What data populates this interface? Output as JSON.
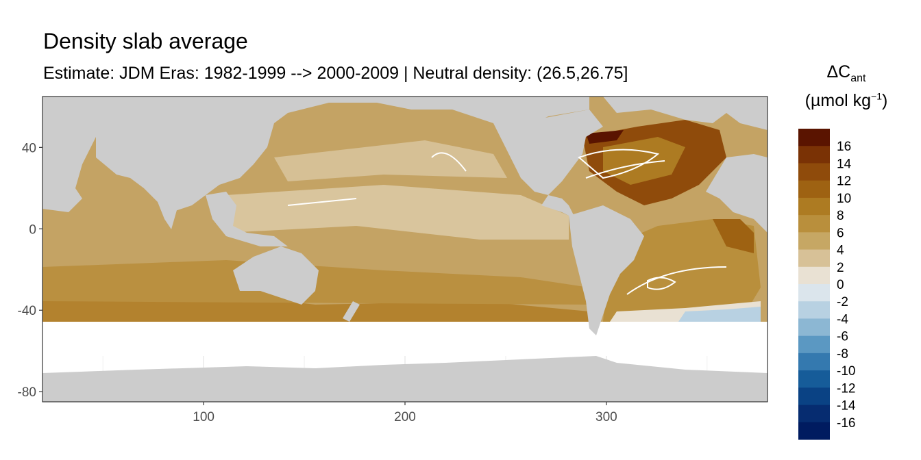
{
  "chart_data": {
    "type": "heatmap",
    "title": "Density slab average",
    "subtitle": "Estimate: JDM Eras: 1982-1999 --> 2000-2009 | Neutral density: (26.5,26.75]",
    "xlabel": "",
    "ylabel": "",
    "xlim": [
      20,
      380
    ],
    "ylim": [
      -85,
      65
    ],
    "x_ticks": [
      100,
      200,
      300
    ],
    "y_ticks": [
      40,
      0,
      -40,
      -80
    ],
    "grid": true,
    "legend": {
      "position": "right",
      "title_symbol": "ΔC",
      "title_subscript": "ant",
      "unit_prefix": "(µmol kg",
      "unit_exponent": "−1",
      "unit_suffix": ")",
      "levels": [
        16,
        14,
        12,
        10,
        8,
        6,
        4,
        2,
        0,
        -2,
        -4,
        -6,
        -8,
        -10,
        -12,
        -14,
        -16
      ],
      "colors": [
        "#5a1400",
        "#7a3205",
        "#8f4b0b",
        "#9e6212",
        "#ad7b22",
        "#b98f3c",
        "#c6a764",
        "#d7c197",
        "#e9e1d3",
        "#dbe5ec",
        "#b8d1e2",
        "#8cb7d3",
        "#5b98c2",
        "#3479af",
        "#165c99",
        "#0a4284",
        "#062c70",
        "#001b60"
      ]
    },
    "colors": {
      "land": "#cccccc",
      "ocean_base": "#c4a364",
      "panel_border": "#333333",
      "gridline": "#ebebeb"
    }
  }
}
